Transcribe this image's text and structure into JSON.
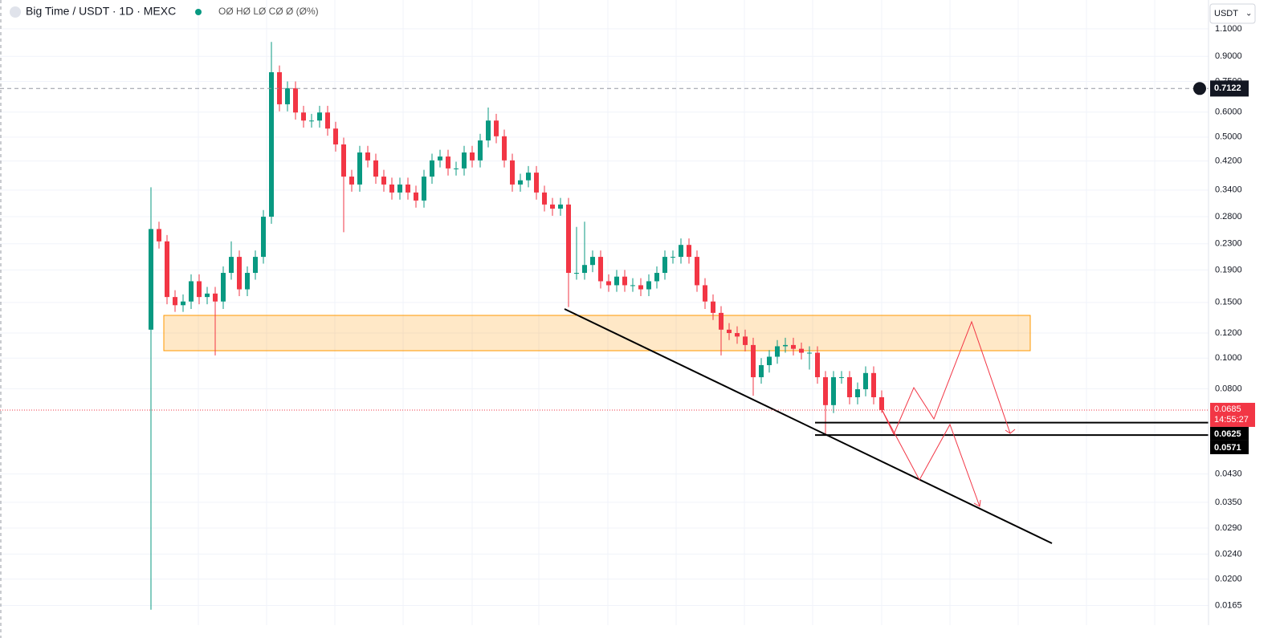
{
  "chart_data": {
    "type": "candlestick",
    "title": "Big Time / USDT · 1D · MEXC",
    "ohlc_text": "OØ HØ LØ CØ Ø (Ø%)",
    "currency": "USDT",
    "log_scale": true,
    "grid": true,
    "up_color": "#089981",
    "down_color": "#f23645",
    "ylim": [
      0.0143,
      1.357
    ],
    "yticks": [
      {
        "value": 1.1,
        "label": "1.1000"
      },
      {
        "value": 0.9,
        "label": "0.9000"
      },
      {
        "value": 0.75,
        "label": "0.7500"
      },
      {
        "value": 0.6,
        "label": "0.6000"
      },
      {
        "value": 0.5,
        "label": "0.5000"
      },
      {
        "value": 0.42,
        "label": "0.4200"
      },
      {
        "value": 0.34,
        "label": "0.3400"
      },
      {
        "value": 0.28,
        "label": "0.2800"
      },
      {
        "value": 0.23,
        "label": "0.2300"
      },
      {
        "value": 0.19,
        "label": "0.1900"
      },
      {
        "value": 0.15,
        "label": "0.1500"
      },
      {
        "value": 0.12,
        "label": "0.1200"
      },
      {
        "value": 0.1,
        "label": "0.1000"
      },
      {
        "value": 0.08,
        "label": "0.0800"
      },
      {
        "value": 0.043,
        "label": "0.0430"
      },
      {
        "value": 0.035,
        "label": "0.0350"
      },
      {
        "value": 0.029,
        "label": "0.0290"
      },
      {
        "value": 0.024,
        "label": "0.0240"
      },
      {
        "value": 0.02,
        "label": "0.0200"
      },
      {
        "value": 0.0165,
        "label": "0.0165"
      }
    ],
    "open": [
      0.123,
      0.256,
      0.234,
      0.156,
      0.147,
      0.151,
      0.175,
      0.156,
      0.16,
      0.151,
      0.186,
      0.209,
      0.165,
      0.186,
      0.209,
      0.28,
      0.802,
      0.635,
      0.714,
      0.598,
      0.564,
      0.564,
      0.598,
      0.532,
      0.474,
      0.375,
      0.354,
      0.447,
      0.422,
      0.375,
      0.354,
      0.334,
      0.354,
      0.334,
      0.315,
      0.375,
      0.422,
      0.434,
      0.398,
      0.398,
      0.447,
      0.422,
      0.488,
      0.564,
      0.503,
      0.422,
      0.354,
      0.365,
      0.386,
      0.334,
      0.306,
      0.297,
      0.306,
      0.186,
      0.186,
      0.197,
      0.209,
      0.175,
      0.17,
      0.181,
      0.17,
      0.17,
      0.165,
      0.175,
      0.186,
      0.209,
      0.209,
      0.228,
      0.209,
      0.17,
      0.151,
      0.139,
      0.123,
      0.12,
      0.117,
      0.11,
      0.087,
      0.095,
      0.101,
      0.109,
      0.11,
      0.107,
      0.104,
      0.104,
      0.087,
      0.071,
      0.087,
      0.087,
      0.0752,
      0.0797,
      0.0897,
      0.0752
    ],
    "high": [
      0.347,
      0.27,
      0.245,
      0.164,
      0.159,
      0.184,
      0.184,
      0.168,
      0.168,
      0.195,
      0.234,
      0.219,
      0.195,
      0.219,
      0.294,
      1.0,
      0.842,
      0.75,
      0.75,
      0.628,
      0.592,
      0.628,
      0.628,
      0.559,
      0.498,
      0.394,
      0.469,
      0.469,
      0.443,
      0.394,
      0.372,
      0.372,
      0.372,
      0.351,
      0.394,
      0.443,
      0.456,
      0.456,
      0.418,
      0.469,
      0.469,
      0.512,
      0.62,
      0.592,
      0.528,
      0.443,
      0.383,
      0.405,
      0.405,
      0.351,
      0.321,
      0.321,
      0.321,
      0.26,
      0.27,
      0.219,
      0.219,
      0.184,
      0.19,
      0.19,
      0.179,
      0.179,
      0.184,
      0.195,
      0.219,
      0.219,
      0.239,
      0.239,
      0.219,
      0.179,
      0.159,
      0.146,
      0.129,
      0.126,
      0.123,
      0.116,
      0.1,
      0.106,
      0.114,
      0.116,
      0.116,
      0.112,
      0.109,
      0.109,
      0.091,
      0.091,
      0.091,
      0.091,
      0.0837,
      0.0942,
      0.0942,
      0.079
    ],
    "low": [
      0.016,
      0.222,
      0.148,
      0.14,
      0.14,
      0.143,
      0.148,
      0.148,
      0.102,
      0.143,
      0.177,
      0.157,
      0.157,
      0.177,
      0.199,
      0.266,
      0.603,
      0.603,
      0.568,
      0.536,
      0.536,
      0.536,
      0.505,
      0.45,
      0.25,
      0.336,
      0.336,
      0.401,
      0.356,
      0.336,
      0.317,
      0.317,
      0.317,
      0.299,
      0.299,
      0.356,
      0.401,
      0.378,
      0.378,
      0.378,
      0.401,
      0.401,
      0.464,
      0.478,
      0.401,
      0.336,
      0.336,
      0.347,
      0.317,
      0.291,
      0.282,
      0.282,
      0.145,
      0.177,
      0.177,
      0.187,
      0.166,
      0.162,
      0.162,
      0.162,
      0.162,
      0.157,
      0.157,
      0.166,
      0.177,
      0.199,
      0.199,
      0.199,
      0.162,
      0.143,
      0.132,
      0.102,
      0.114,
      0.111,
      0.105,
      0.076,
      0.083,
      0.09,
      0.096,
      0.104,
      0.102,
      0.099,
      0.092,
      0.083,
      0.057,
      0.067,
      0.083,
      0.0714,
      0.0714,
      0.0757,
      0.0714,
      0.0671
    ],
    "close": [
      0.256,
      0.234,
      0.156,
      0.147,
      0.151,
      0.175,
      0.156,
      0.16,
      0.151,
      0.186,
      0.209,
      0.165,
      0.186,
      0.209,
      0.28,
      0.802,
      0.635,
      0.714,
      0.598,
      0.564,
      0.564,
      0.598,
      0.532,
      0.474,
      0.375,
      0.354,
      0.447,
      0.422,
      0.375,
      0.354,
      0.334,
      0.354,
      0.334,
      0.315,
      0.375,
      0.422,
      0.434,
      0.398,
      0.398,
      0.447,
      0.422,
      0.488,
      0.564,
      0.503,
      0.422,
      0.354,
      0.365,
      0.386,
      0.334,
      0.306,
      0.297,
      0.306,
      0.186,
      0.186,
      0.197,
      0.209,
      0.175,
      0.17,
      0.181,
      0.17,
      0.17,
      0.165,
      0.175,
      0.186,
      0.209,
      0.209,
      0.228,
      0.209,
      0.17,
      0.151,
      0.139,
      0.123,
      0.12,
      0.117,
      0.11,
      0.087,
      0.095,
      0.101,
      0.109,
      0.11,
      0.107,
      0.104,
      0.104,
      0.087,
      0.071,
      0.087,
      0.087,
      0.0752,
      0.0797,
      0.0897,
      0.0752,
      0.0685
    ],
    "crosshair_price": 0.7122,
    "last_price": 0.0685,
    "countdown": "14:55:27",
    "levels": [
      0.0625,
      0.0571
    ]
  }
}
